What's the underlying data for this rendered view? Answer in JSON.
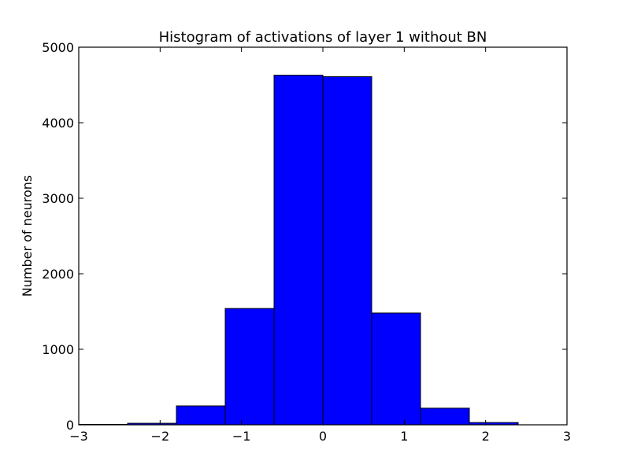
{
  "chart_data": {
    "type": "bar",
    "title": "Histogram of activations of layer 1  without BN",
    "xlabel": "",
    "ylabel": "Number of neurons",
    "xlim": [
      -3,
      3
    ],
    "ylim": [
      0,
      5000
    ],
    "xticks": [
      -3,
      -2,
      -1,
      0,
      1,
      2,
      3
    ],
    "xtick_labels": [
      "−3",
      "−2",
      "−1",
      "0",
      "1",
      "2",
      "3"
    ],
    "yticks": [
      0,
      1000,
      2000,
      3000,
      4000,
      5000
    ],
    "ytick_labels": [
      "0",
      "1000",
      "2000",
      "3000",
      "4000",
      "5000"
    ],
    "bin_edges": [
      -3.0,
      -2.4,
      -1.8,
      -1.2,
      -0.6,
      0.0,
      0.6,
      1.2,
      1.8,
      2.4,
      3.0
    ],
    "values": [
      5,
      20,
      250,
      1540,
      4630,
      4610,
      1480,
      220,
      30,
      0
    ],
    "bar_color": "#0000ff",
    "edge_color": "#000000",
    "grid": false
  }
}
